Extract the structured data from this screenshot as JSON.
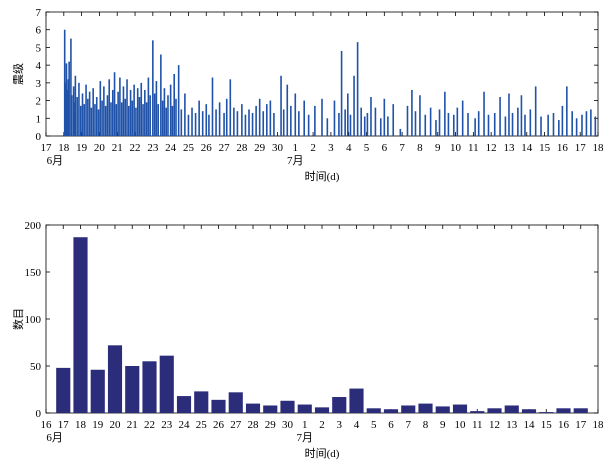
{
  "chart_data": [
    {
      "type": "bar",
      "title": "",
      "ylabel": "震级",
      "xlabel": "时间(d)",
      "ylim": [
        0,
        7
      ],
      "yticks": [
        0,
        1,
        2,
        3,
        4,
        5,
        6,
        7
      ],
      "xlim": [
        17,
        48
      ],
      "xticks": [
        17,
        18,
        19,
        20,
        21,
        22,
        23,
        24,
        25,
        26,
        27,
        28,
        29,
        30,
        31,
        32,
        33,
        34,
        35,
        36,
        37,
        38,
        39,
        40,
        41,
        42,
        43,
        44,
        45,
        46,
        47,
        48
      ],
      "xticklabels": [
        "17",
        "18",
        "19",
        "20",
        "21",
        "22",
        "23",
        "24",
        "25",
        "26",
        "27",
        "28",
        "29",
        "30",
        "1",
        "2",
        "3",
        "4",
        "5",
        "6",
        "7",
        "8",
        "9",
        "10",
        "11",
        "12",
        "13",
        "14",
        "15",
        "16",
        "17",
        "18"
      ],
      "month_labels": [
        {
          "label": "6月",
          "x": 17.5
        },
        {
          "label": "7月",
          "x": 31
        }
      ],
      "color": "#1f52a8",
      "points": [
        [
          18.05,
          6.0
        ],
        [
          18.1,
          3.0
        ],
        [
          18.15,
          4.1
        ],
        [
          18.2,
          2.6
        ],
        [
          18.25,
          3.2
        ],
        [
          18.3,
          4.2
        ],
        [
          18.4,
          5.5
        ],
        [
          18.45,
          2.3
        ],
        [
          18.55,
          2.8
        ],
        [
          18.6,
          1.9
        ],
        [
          18.65,
          3.4
        ],
        [
          18.75,
          2.2
        ],
        [
          18.85,
          3.0
        ],
        [
          18.95,
          1.7
        ],
        [
          19.05,
          2.4
        ],
        [
          19.15,
          1.8
        ],
        [
          19.25,
          2.9
        ],
        [
          19.35,
          2.1
        ],
        [
          19.45,
          2.5
        ],
        [
          19.55,
          1.6
        ],
        [
          19.65,
          2.7
        ],
        [
          19.75,
          1.8
        ],
        [
          19.85,
          2.2
        ],
        [
          19.95,
          1.5
        ],
        [
          20.05,
          3.1
        ],
        [
          20.15,
          2.0
        ],
        [
          20.25,
          2.8
        ],
        [
          20.35,
          1.7
        ],
        [
          20.45,
          2.3
        ],
        [
          20.55,
          3.2
        ],
        [
          20.65,
          1.9
        ],
        [
          20.75,
          2.6
        ],
        [
          20.85,
          3.6
        ],
        [
          20.95,
          1.8
        ],
        [
          21.05,
          2.5
        ],
        [
          21.15,
          3.3
        ],
        [
          21.25,
          1.9
        ],
        [
          21.35,
          2.8
        ],
        [
          21.45,
          2.1
        ],
        [
          21.55,
          3.2
        ],
        [
          21.65,
          1.7
        ],
        [
          21.75,
          2.6
        ],
        [
          21.85,
          2.0
        ],
        [
          21.95,
          2.9
        ],
        [
          22.05,
          1.6
        ],
        [
          22.15,
          2.7
        ],
        [
          22.25,
          2.2
        ],
        [
          22.35,
          3.0
        ],
        [
          22.45,
          1.8
        ],
        [
          22.55,
          2.6
        ],
        [
          22.65,
          1.9
        ],
        [
          22.75,
          3.3
        ],
        [
          22.85,
          2.3
        ],
        [
          23.0,
          5.4
        ],
        [
          23.1,
          2.4
        ],
        [
          23.2,
          3.1
        ],
        [
          23.3,
          1.8
        ],
        [
          23.45,
          4.6
        ],
        [
          23.55,
          2.0
        ],
        [
          23.65,
          2.7
        ],
        [
          23.75,
          1.6
        ],
        [
          23.85,
          2.3
        ],
        [
          24.0,
          2.9
        ],
        [
          24.1,
          1.7
        ],
        [
          24.2,
          3.5
        ],
        [
          24.3,
          2.1
        ],
        [
          24.45,
          4.0
        ],
        [
          24.6,
          1.5
        ],
        [
          24.8,
          2.4
        ],
        [
          25.0,
          1.2
        ],
        [
          25.2,
          1.6
        ],
        [
          25.4,
          1.3
        ],
        [
          25.6,
          2.0
        ],
        [
          25.8,
          1.4
        ],
        [
          26.0,
          1.8
        ],
        [
          26.15,
          1.2
        ],
        [
          26.35,
          3.3
        ],
        [
          26.55,
          1.5
        ],
        [
          26.75,
          1.9
        ],
        [
          27.0,
          1.3
        ],
        [
          27.15,
          2.1
        ],
        [
          27.35,
          3.2
        ],
        [
          27.55,
          1.6
        ],
        [
          27.75,
          1.4
        ],
        [
          28.0,
          1.8
        ],
        [
          28.2,
          1.2
        ],
        [
          28.4,
          1.5
        ],
        [
          28.6,
          1.3
        ],
        [
          28.8,
          1.7
        ],
        [
          29.0,
          2.1
        ],
        [
          29.2,
          1.4
        ],
        [
          29.4,
          1.8
        ],
        [
          29.6,
          2.0
        ],
        [
          29.8,
          1.3
        ],
        [
          30.2,
          3.4
        ],
        [
          30.35,
          1.5
        ],
        [
          30.55,
          2.9
        ],
        [
          30.75,
          1.7
        ],
        [
          31.0,
          2.4
        ],
        [
          31.2,
          1.4
        ],
        [
          31.5,
          2.0
        ],
        [
          31.75,
          1.2
        ],
        [
          32.1,
          1.7
        ],
        [
          32.5,
          2.1
        ],
        [
          32.8,
          1.0
        ],
        [
          33.2,
          2.0
        ],
        [
          33.45,
          1.3
        ],
        [
          33.6,
          4.8
        ],
        [
          33.8,
          1.5
        ],
        [
          33.95,
          2.4
        ],
        [
          34.1,
          1.2
        ],
        [
          34.3,
          3.4
        ],
        [
          34.5,
          5.3
        ],
        [
          34.7,
          1.6
        ],
        [
          34.9,
          1.1
        ],
        [
          35.05,
          1.3
        ],
        [
          35.25,
          2.2
        ],
        [
          35.5,
          1.6
        ],
        [
          35.8,
          1.0
        ],
        [
          36.0,
          2.1
        ],
        [
          36.2,
          1.1
        ],
        [
          36.5,
          1.8
        ],
        [
          36.9,
          0.4
        ],
        [
          37.3,
          1.7
        ],
        [
          37.55,
          2.6
        ],
        [
          37.75,
          1.4
        ],
        [
          38.0,
          2.3
        ],
        [
          38.3,
          1.2
        ],
        [
          38.6,
          1.6
        ],
        [
          38.9,
          0.9
        ],
        [
          39.1,
          1.5
        ],
        [
          39.4,
          2.5
        ],
        [
          39.6,
          1.3
        ],
        [
          39.9,
          1.2
        ],
        [
          40.1,
          1.6
        ],
        [
          40.4,
          2.0
        ],
        [
          40.7,
          1.3
        ],
        [
          41.1,
          1.0
        ],
        [
          41.3,
          1.4
        ],
        [
          41.6,
          2.5
        ],
        [
          41.85,
          1.2
        ],
        [
          42.2,
          1.3
        ],
        [
          42.5,
          2.2
        ],
        [
          42.8,
          1.1
        ],
        [
          43.0,
          2.4
        ],
        [
          43.2,
          1.3
        ],
        [
          43.5,
          1.6
        ],
        [
          43.7,
          2.3
        ],
        [
          43.9,
          1.2
        ],
        [
          44.2,
          1.5
        ],
        [
          44.5,
          2.8
        ],
        [
          44.8,
          1.1
        ],
        [
          45.2,
          1.2
        ],
        [
          45.5,
          1.3
        ],
        [
          45.8,
          0.9
        ],
        [
          46.0,
          1.7
        ],
        [
          46.25,
          2.8
        ],
        [
          46.55,
          1.4
        ],
        [
          46.8,
          1.0
        ],
        [
          47.1,
          1.2
        ],
        [
          47.35,
          1.4
        ],
        [
          47.6,
          1.5
        ],
        [
          47.85,
          1.1
        ]
      ]
    },
    {
      "type": "bar",
      "title": "",
      "ylabel": "数目",
      "xlabel": "时间(d)",
      "ylim": [
        0,
        200
      ],
      "yticks": [
        0,
        50,
        100,
        150,
        200
      ],
      "xlim": [
        16,
        48
      ],
      "xticks": [
        16,
        17,
        18,
        19,
        20,
        21,
        22,
        23,
        24,
        25,
        26,
        27,
        28,
        29,
        30,
        31,
        32,
        33,
        34,
        35,
        36,
        37,
        38,
        39,
        40,
        41,
        42,
        43,
        44,
        45,
        46,
        47,
        48
      ],
      "xticklabels": [
        "16",
        "17",
        "18",
        "19",
        "20",
        "21",
        "22",
        "23",
        "24",
        "25",
        "26",
        "27",
        "28",
        "29",
        "30",
        "1",
        "2",
        "3",
        "4",
        "5",
        "6",
        "7",
        "8",
        "9",
        "10",
        "11",
        "12",
        "13",
        "14",
        "15",
        "16",
        "17",
        "18"
      ],
      "month_labels": [
        {
          "label": "6月",
          "x": 16.5
        },
        {
          "label": "7月",
          "x": 31
        }
      ],
      "color": "#2b2c7a",
      "categories": [
        17,
        18,
        19,
        20,
        21,
        22,
        23,
        24,
        25,
        26,
        27,
        28,
        29,
        30,
        31,
        32,
        33,
        34,
        35,
        36,
        37,
        38,
        39,
        40,
        41,
        42,
        43,
        44,
        45,
        46,
        47
      ],
      "values": [
        48,
        187,
        46,
        72,
        50,
        55,
        61,
        18,
        23,
        14,
        22,
        10,
        8,
        13,
        9,
        6,
        17,
        26,
        5,
        4,
        8,
        10,
        7,
        9,
        2,
        5,
        8,
        4,
        1,
        5,
        5
      ]
    }
  ]
}
